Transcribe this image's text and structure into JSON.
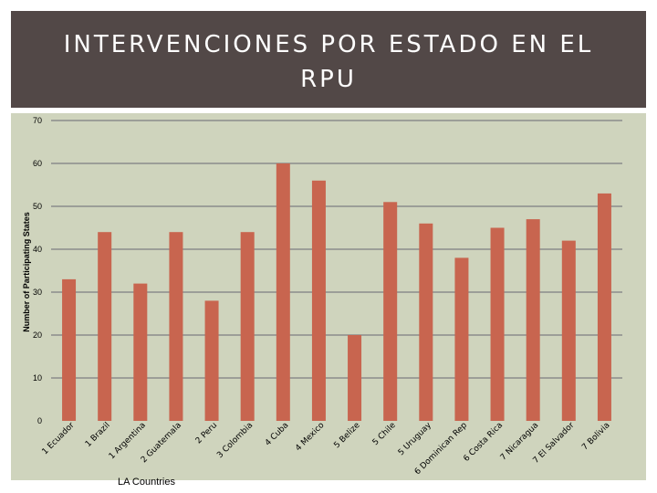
{
  "header": {
    "title": "INTERVENCIONES POR ESTADO EN EL RPU"
  },
  "colors": {
    "bar": "#c8654f",
    "panel": "#cfd4bd",
    "header": "#524847",
    "grid": "#8c8c8c"
  },
  "chart_data": {
    "type": "bar",
    "title": "INTERVENCIONES POR ESTADO EN EL RPU",
    "xlabel": "LA Countries",
    "ylabel": "Number of Participating States",
    "ylim": [
      0,
      70
    ],
    "yticks": [
      0,
      10,
      20,
      30,
      40,
      50,
      60,
      70
    ],
    "grid": true,
    "categories": [
      "1 Ecuador",
      "1 Brazil",
      "1 Argentina",
      "2 Guatemala",
      "2 Peru",
      "3 Colombia",
      "4 Cuba",
      "4 Mexico",
      "5 Belize",
      "5 Chile",
      "5 Uruguay",
      "6 Dominican Rep",
      "6 Costa Rica",
      "7 Nicaragua",
      "7 El Salvador",
      "7 Bolivia"
    ],
    "values": [
      33,
      44,
      32,
      44,
      28,
      44,
      60,
      56,
      20,
      51,
      46,
      38,
      45,
      47,
      42,
      53
    ]
  }
}
